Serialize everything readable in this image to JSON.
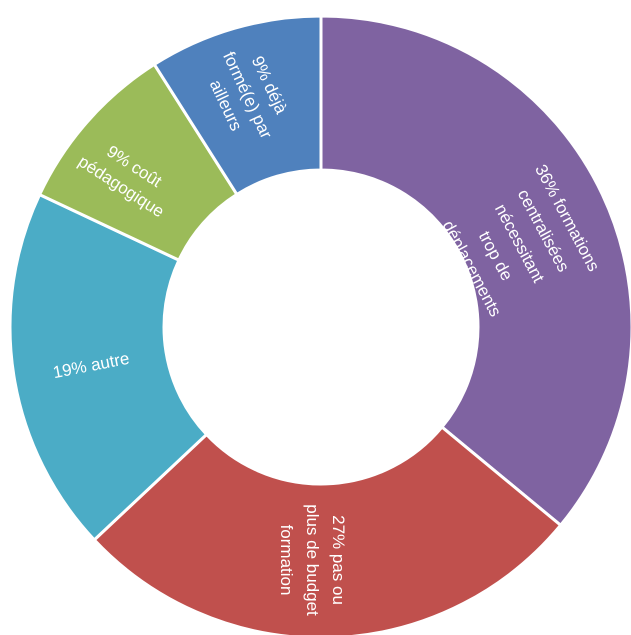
{
  "chart_data": {
    "type": "pie",
    "variant": "donut",
    "start_at": "top",
    "direction": "clockwise",
    "title": "",
    "slices": [
      {
        "label_lines": [
          "36% formations",
          "centralisées",
          "nécessitant",
          "trop de",
          "déplacements"
        ],
        "value": 36,
        "color": "#7f63a1"
      },
      {
        "label_lines": [
          "27% pas ou",
          "plus de budget",
          "formation"
        ],
        "value": 27,
        "color": "#c0504d"
      },
      {
        "label_lines": [
          "19% autre"
        ],
        "value": 19,
        "color": "#4bacc6"
      },
      {
        "label_lines": [
          "9% coût",
          "pédagogique"
        ],
        "value": 9,
        "color": "#9bbb59"
      },
      {
        "label_lines": [
          "9% déjà",
          "formé(e) par",
          "ailleurs"
        ],
        "value": 9,
        "color": "#4f81bd"
      }
    ]
  }
}
